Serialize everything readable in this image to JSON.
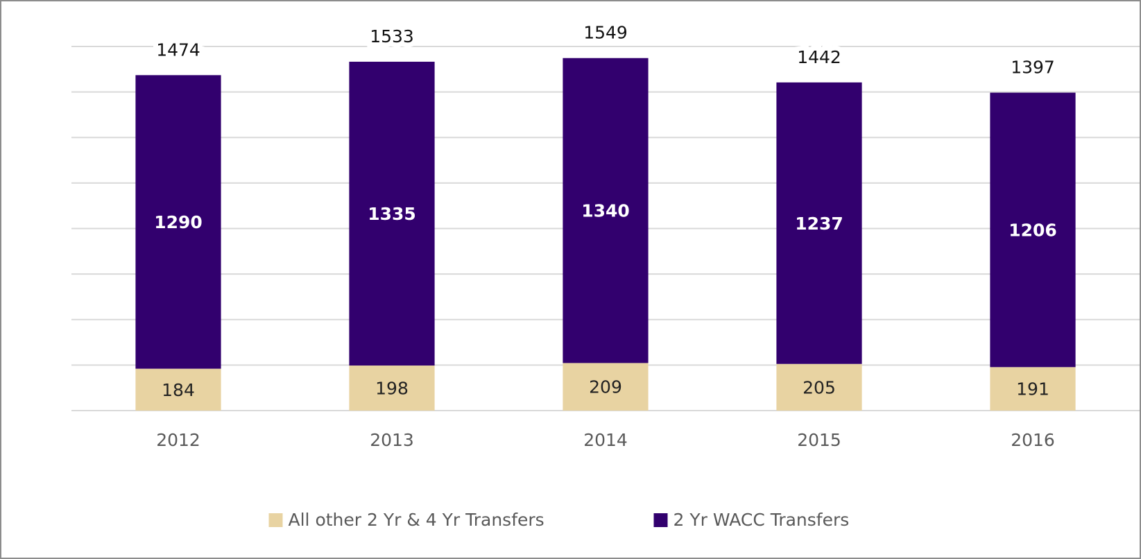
{
  "chart_data": {
    "type": "stacked_bar",
    "categories": [
      "2012",
      "2013",
      "2014",
      "2015",
      "2016"
    ],
    "series": [
      {
        "name": "All other 2 Yr & 4 Yr Transfers",
        "color": "#e8d3a2",
        "values": [
          184,
          198,
          209,
          205,
          191
        ]
      },
      {
        "name": "2 Yr WACC Transfers",
        "color": "#32006e",
        "values": [
          1290,
          1335,
          1340,
          1237,
          1206
        ]
      }
    ],
    "totals": [
      1474,
      1533,
      1549,
      1442,
      1397
    ],
    "ylim": [
      0,
      1600
    ],
    "yticks": [
      0,
      200,
      400,
      600,
      800,
      1000,
      1200,
      1400,
      1600
    ],
    "grid": true
  }
}
